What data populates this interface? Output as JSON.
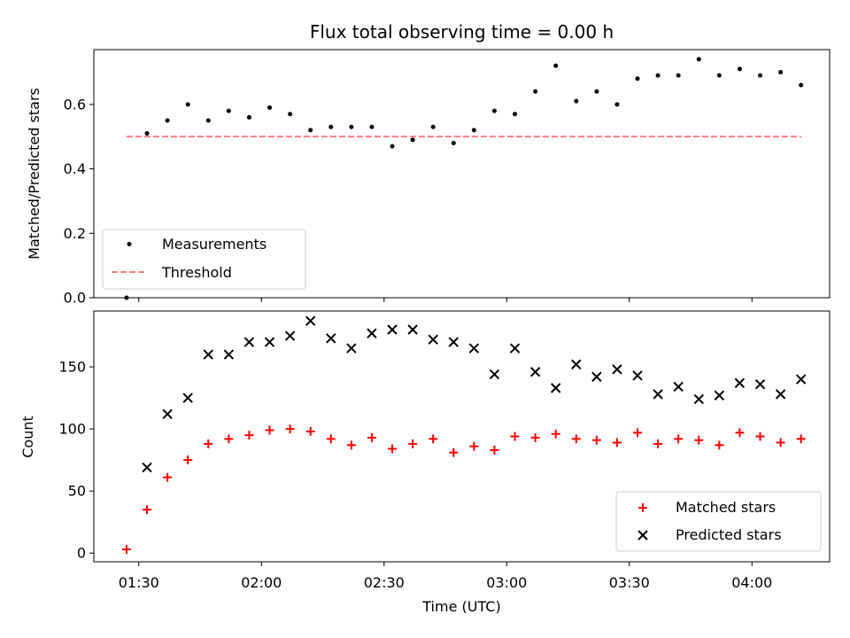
{
  "chart_data": [
    {
      "type": "scatter",
      "title": "Flux total observing time = 0.00 h",
      "xlabel": "",
      "ylabel": "Matched/Predicted stars",
      "xlim": [
        "01:19",
        "04:19"
      ],
      "ylim": [
        0,
        0.77
      ],
      "yticks": [
        0.0,
        0.2,
        0.4,
        0.6
      ],
      "ytick_labels": [
        "0.0",
        "0.2",
        "0.4",
        "0.6"
      ],
      "xticks": [
        "01:30",
        "02:00",
        "02:30",
        "03:00",
        "03:30",
        "04:00"
      ],
      "legend_position": "lower left",
      "series": [
        {
          "name": "Measurements",
          "marker": "dot",
          "color": "#000000",
          "x": [
            "01:27",
            "01:32",
            "01:37",
            "01:42",
            "01:47",
            "01:52",
            "01:57",
            "02:02",
            "02:07",
            "02:12",
            "02:17",
            "02:22",
            "02:27",
            "02:32",
            "02:37",
            "02:42",
            "02:47",
            "02:52",
            "02:57",
            "03:02",
            "03:07",
            "03:12",
            "03:17",
            "03:22",
            "03:27",
            "03:32",
            "03:37",
            "03:42",
            "03:47",
            "03:52",
            "03:57",
            "04:02",
            "04:07",
            "04:12"
          ],
          "y": [
            0.0,
            0.51,
            0.55,
            0.6,
            0.55,
            0.58,
            0.56,
            0.59,
            0.57,
            0.52,
            0.53,
            0.53,
            0.53,
            0.47,
            0.49,
            0.53,
            0.48,
            0.52,
            0.58,
            0.57,
            0.64,
            0.72,
            0.61,
            0.64,
            0.6,
            0.68,
            0.69,
            0.69,
            0.74,
            0.69,
            0.71,
            0.69,
            0.7,
            0.66
          ]
        },
        {
          "name": "Threshold",
          "type": "line",
          "style": "dashed",
          "color": "#ff7f7f",
          "x": [
            "01:27",
            "04:12"
          ],
          "y": [
            0.5,
            0.5
          ]
        }
      ]
    },
    {
      "type": "scatter",
      "title": "",
      "xlabel": "Time (UTC)",
      "ylabel": "Count",
      "xlim": [
        "01:19",
        "04:19"
      ],
      "ylim": [
        -7,
        195
      ],
      "yticks": [
        0,
        50,
        100,
        150
      ],
      "ytick_labels": [
        "0",
        "50",
        "100",
        "150"
      ],
      "xticks": [
        "01:30",
        "02:00",
        "02:30",
        "03:00",
        "03:30",
        "04:00"
      ],
      "legend_position": "lower right",
      "series": [
        {
          "name": "Matched stars",
          "marker": "plus",
          "color": "#ff0000",
          "x": [
            "01:27",
            "01:32",
            "01:37",
            "01:42",
            "01:47",
            "01:52",
            "01:57",
            "02:02",
            "02:07",
            "02:12",
            "02:17",
            "02:22",
            "02:27",
            "02:32",
            "02:37",
            "02:42",
            "02:47",
            "02:52",
            "02:57",
            "03:02",
            "03:07",
            "03:12",
            "03:17",
            "03:22",
            "03:27",
            "03:32",
            "03:37",
            "03:42",
            "03:47",
            "03:52",
            "03:57",
            "04:02",
            "04:07",
            "04:12"
          ],
          "y": [
            3,
            35,
            61,
            75,
            88,
            92,
            95,
            99,
            100,
            98,
            92,
            87,
            93,
            84,
            88,
            92,
            81,
            86,
            83,
            94,
            93,
            96,
            92,
            91,
            89,
            97,
            88,
            92,
            91,
            87,
            97,
            94,
            89,
            92
          ]
        },
        {
          "name": "Predicted stars",
          "marker": "x",
          "color": "#000000",
          "x": [
            "01:32",
            "01:37",
            "01:42",
            "01:47",
            "01:52",
            "01:57",
            "02:02",
            "02:07",
            "02:12",
            "02:17",
            "02:22",
            "02:27",
            "02:32",
            "02:37",
            "02:42",
            "02:47",
            "02:52",
            "02:57",
            "03:02",
            "03:07",
            "03:12",
            "03:17",
            "03:22",
            "03:27",
            "03:32",
            "03:37",
            "03:42",
            "03:47",
            "03:52",
            "03:57",
            "04:02",
            "04:07",
            "04:12"
          ],
          "y": [
            69,
            112,
            125,
            160,
            160,
            170,
            170,
            175,
            187,
            173,
            165,
            177,
            180,
            180,
            172,
            170,
            165,
            144,
            165,
            146,
            133,
            152,
            142,
            148,
            143,
            128,
            134,
            124,
            127,
            137,
            136,
            128,
            140
          ]
        }
      ]
    }
  ]
}
